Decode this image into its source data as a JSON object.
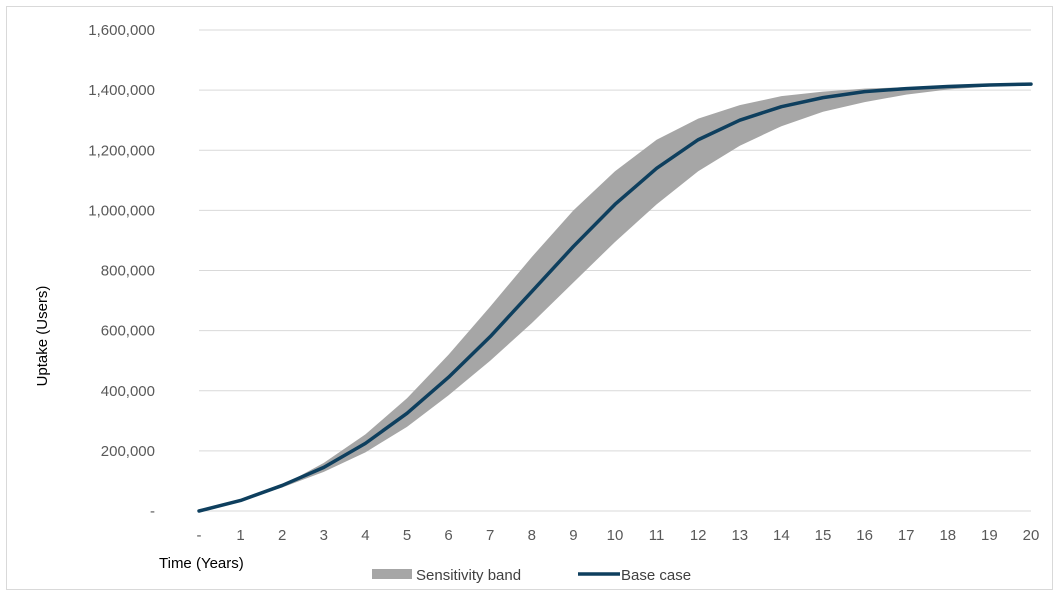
{
  "chart_data": {
    "type": "area",
    "title": "",
    "xlabel": "Time (Years)",
    "ylabel": "Uptake (Users)",
    "x": [
      0,
      1,
      2,
      3,
      4,
      5,
      6,
      7,
      8,
      9,
      10,
      11,
      12,
      13,
      14,
      15,
      16,
      17,
      18,
      19,
      20
    ],
    "x_tick_labels": [
      "-",
      "1",
      "2",
      "3",
      "4",
      "5",
      "6",
      "7",
      "8",
      "9",
      "10",
      "11",
      "12",
      "13",
      "14",
      "15",
      "16",
      "17",
      "18",
      "19",
      "20"
    ],
    "ylim": [
      0,
      1600000
    ],
    "y_ticks": [
      0,
      200000,
      400000,
      600000,
      800000,
      1000000,
      1200000,
      1400000,
      1600000
    ],
    "y_tick_labels": [
      "-",
      "200,000",
      "400,000",
      "600,000",
      "800,000",
      "1,000,000",
      "1,200,000",
      "1,400,000",
      "1,600,000"
    ],
    "grid": true,
    "legend_position": "bottom",
    "series": [
      {
        "name": "Sensitivity band",
        "kind": "band",
        "color": "#a6a6a6",
        "upper": [
          0,
          35000,
          85000,
          160000,
          255000,
          375000,
          520000,
          680000,
          845000,
          1000000,
          1130000,
          1235000,
          1305000,
          1350000,
          1380000,
          1395000,
          1405000,
          1410000,
          1413000,
          1416000,
          1420000
        ],
        "lower": [
          0,
          33000,
          78000,
          130000,
          195000,
          280000,
          385000,
          500000,
          625000,
          760000,
          895000,
          1020000,
          1130000,
          1215000,
          1280000,
          1328000,
          1360000,
          1385000,
          1402000,
          1412000,
          1418000
        ]
      },
      {
        "name": "Base case",
        "kind": "line",
        "color": "#0e3f5e",
        "values": [
          0,
          35000,
          85000,
          145000,
          225000,
          325000,
          445000,
          580000,
          730000,
          880000,
          1020000,
          1140000,
          1235000,
          1300000,
          1345000,
          1375000,
          1395000,
          1405000,
          1412000,
          1417000,
          1420000
        ]
      }
    ]
  }
}
